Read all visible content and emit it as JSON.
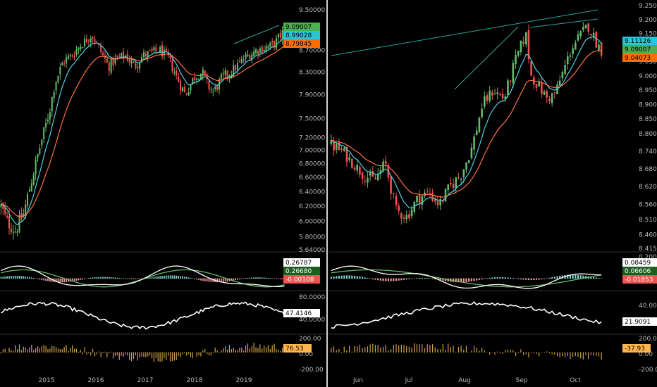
{
  "chart_data": [
    {
      "type": "candlestick",
      "panel": "weekly-left",
      "x_tick_labels": [
        "2015",
        "2016",
        "2017",
        "2018",
        "2019"
      ],
      "price_axis": {
        "scale": "log",
        "range": [
          5.64,
          9.5
        ],
        "tick_labels": [
          "9.50000",
          "8.70000",
          "8.30000",
          "7.90000",
          "7.50000",
          "7.20000",
          "7.00000",
          "6.80000",
          "6.60000",
          "6.40000",
          "6.20000",
          "6.00000",
          "5.80000",
          "5.64000"
        ],
        "tick_values": [
          9.5,
          8.7,
          8.3,
          7.9,
          7.5,
          7.2,
          7.0,
          6.8,
          6.6,
          6.4,
          6.2,
          6.0,
          5.8,
          5.64
        ]
      },
      "last_labels": [
        {
          "text": "9.09007",
          "value": 9.09007,
          "color": "#4caf50"
        },
        {
          "text": "8.99028",
          "value": 8.99028,
          "color": "#26c6da"
        },
        {
          "text": "8.79845",
          "value": 8.79845,
          "color": "#ff6d00"
        }
      ],
      "price_path": [
        [
          0,
          6.2
        ],
        [
          0.02,
          6.0
        ],
        [
          0.05,
          5.88
        ],
        [
          0.08,
          6.1
        ],
        [
          0.11,
          6.6
        ],
        [
          0.14,
          7.1
        ],
        [
          0.17,
          7.6
        ],
        [
          0.19,
          8.1
        ],
        [
          0.22,
          8.5
        ],
        [
          0.25,
          8.6
        ],
        [
          0.28,
          8.8
        ],
        [
          0.32,
          9.0
        ],
        [
          0.35,
          8.7
        ],
        [
          0.38,
          8.4
        ],
        [
          0.41,
          8.55
        ],
        [
          0.44,
          8.6
        ],
        [
          0.47,
          8.4
        ],
        [
          0.5,
          8.6
        ],
        [
          0.53,
          8.65
        ],
        [
          0.56,
          8.7
        ],
        [
          0.59,
          8.55
        ],
        [
          0.62,
          8.2
        ],
        [
          0.65,
          7.9
        ],
        [
          0.68,
          8.2
        ],
        [
          0.71,
          8.3
        ],
        [
          0.73,
          8.05
        ],
        [
          0.75,
          7.95
        ],
        [
          0.78,
          8.2
        ],
        [
          0.81,
          8.3
        ],
        [
          0.84,
          8.45
        ],
        [
          0.87,
          8.6
        ],
        [
          0.9,
          8.7
        ],
        [
          0.93,
          8.75
        ],
        [
          0.96,
          8.8
        ],
        [
          1.0,
          9.09
        ]
      ],
      "macd": {
        "tick_labels": [],
        "last_labels": [
          {
            "text": "0.26787",
            "color": "#ffffff"
          },
          {
            "text": "0.26680",
            "color": "#1b5e20"
          },
          {
            "text": "-0.00108",
            "color": "#ef5350"
          }
        ]
      },
      "oscillator": {
        "tick_labels": [
          "80.0000",
          "40.0000"
        ],
        "last_labels": [
          {
            "text": "47.4146",
            "color": "#ffffff"
          }
        ]
      },
      "histogram": {
        "tick_labels": [
          "200.00",
          "0.00",
          "-200.00"
        ],
        "last_labels": [
          {
            "text": "76.53",
            "color": "#ffb74d"
          }
        ]
      }
    },
    {
      "type": "candlestick",
      "panel": "daily-right",
      "x_tick_labels": [
        "Jun",
        "Jul",
        "Aug",
        "Sep",
        "Oct"
      ],
      "price_axis": {
        "scale": "log",
        "range": [
          8.415,
          9.25
        ],
        "tick_labels": [
          "9.25000",
          "9.20000",
          "9.15000",
          "9.05000",
          "9.00000",
          "8.95000",
          "8.90000",
          "8.85000",
          "8.80000",
          "8.74000",
          "8.68000",
          "8.62000",
          "8.56000",
          "8.51000",
          "8.46000",
          "8.41500"
        ],
        "tick_values": [
          9.25,
          9.2,
          9.15,
          9.05,
          9.0,
          8.95,
          8.9,
          8.85,
          8.8,
          8.74,
          8.68,
          8.62,
          8.56,
          8.51,
          8.46,
          8.415
        ]
      },
      "last_labels": [
        {
          "text": "9.11126",
          "value": 9.11126,
          "color": "#26c6da"
        },
        {
          "text": "9.09007",
          "value": 9.09007,
          "color": "#4caf50"
        },
        {
          "text": "9.04073",
          "value": 9.04073,
          "color": "#ff6d00"
        }
      ],
      "price_path": [
        [
          0,
          8.76
        ],
        [
          0.04,
          8.74
        ],
        [
          0.08,
          8.7
        ],
        [
          0.12,
          8.66
        ],
        [
          0.16,
          8.64
        ],
        [
          0.2,
          8.7
        ],
        [
          0.24,
          8.54
        ],
        [
          0.28,
          8.52
        ],
        [
          0.32,
          8.58
        ],
        [
          0.36,
          8.6
        ],
        [
          0.4,
          8.56
        ],
        [
          0.44,
          8.62
        ],
        [
          0.48,
          8.66
        ],
        [
          0.52,
          8.75
        ],
        [
          0.56,
          8.9
        ],
        [
          0.6,
          8.95
        ],
        [
          0.64,
          8.92
        ],
        [
          0.68,
          9.05
        ],
        [
          0.72,
          9.15
        ],
        [
          0.74,
          9.0
        ],
        [
          0.77,
          8.96
        ],
        [
          0.8,
          8.92
        ],
        [
          0.83,
          8.94
        ],
        [
          0.86,
          9.02
        ],
        [
          0.89,
          9.1
        ],
        [
          0.92,
          9.14
        ],
        [
          0.95,
          9.18
        ],
        [
          0.98,
          9.12
        ],
        [
          1.0,
          9.09
        ]
      ],
      "macd": {
        "tick_labels": [
          "0.20000"
        ],
        "last_labels": [
          {
            "text": "0.08459",
            "color": "#ffffff"
          },
          {
            "text": "0.06606",
            "color": "#1b5e20"
          },
          {
            "text": "-0.01853",
            "color": "#ef5350"
          }
        ]
      },
      "oscillator": {
        "tick_labels": [
          "40.0000"
        ],
        "last_labels": [
          {
            "text": "21.9091",
            "color": "#ffffff"
          }
        ]
      },
      "histogram": {
        "tick_labels": [
          "200.00",
          "0.00",
          "-200.00"
        ],
        "last_labels": [
          {
            "text": "-37.93",
            "color": "#ffb74d"
          }
        ]
      }
    }
  ],
  "colors": {
    "up": "#66bb6a",
    "down": "#ef5350",
    "ma_fast": "#4dd0e1",
    "ma_slow": "#ff7043",
    "trendline": "#26a69a",
    "macd_line": "#ffffff",
    "signal_line": "#66bb6a",
    "histogram": "#d4a24c",
    "background": "#000000",
    "axis_text": "#b8b8b8"
  }
}
